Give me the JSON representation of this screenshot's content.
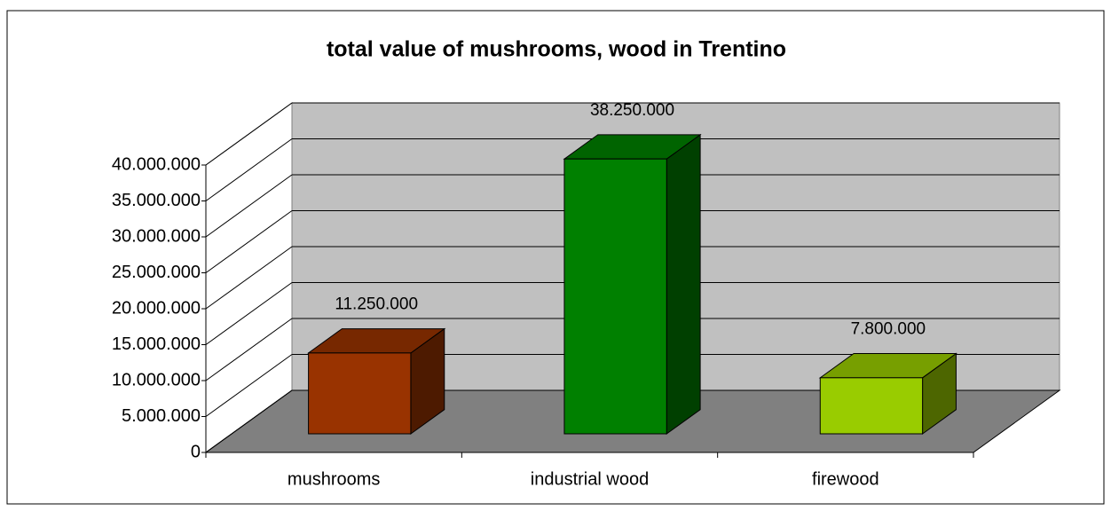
{
  "chart_data": {
    "type": "bar3d",
    "title": "total value of mushrooms, wood in Trentino",
    "categories": [
      "mushrooms",
      "industrial wood",
      "firewood"
    ],
    "values": [
      11250000,
      38250000,
      7800000
    ],
    "value_labels": [
      "11.250.000",
      "38.250.000",
      "7.800.000"
    ],
    "colors": [
      "#993300",
      "#008000",
      "#99cc00"
    ],
    "ylim": [
      0,
      40000000
    ],
    "yticks": [
      0,
      {
        "value": 5000000,
        "label": "5.000.000"
      },
      {
        "value": 10000000,
        "label": "10.000.000"
      },
      {
        "value": 15000000,
        "label": "15.000.000"
      },
      {
        "value": 20000000,
        "label": "20.000.000"
      },
      {
        "value": 25000000,
        "label": "25.000.000"
      },
      {
        "value": 30000000,
        "label": "30.000.000"
      },
      {
        "value": 35000000,
        "label": "35.000.000"
      },
      {
        "value": 40000000,
        "label": "40.000.000"
      }
    ],
    "grid": true
  }
}
